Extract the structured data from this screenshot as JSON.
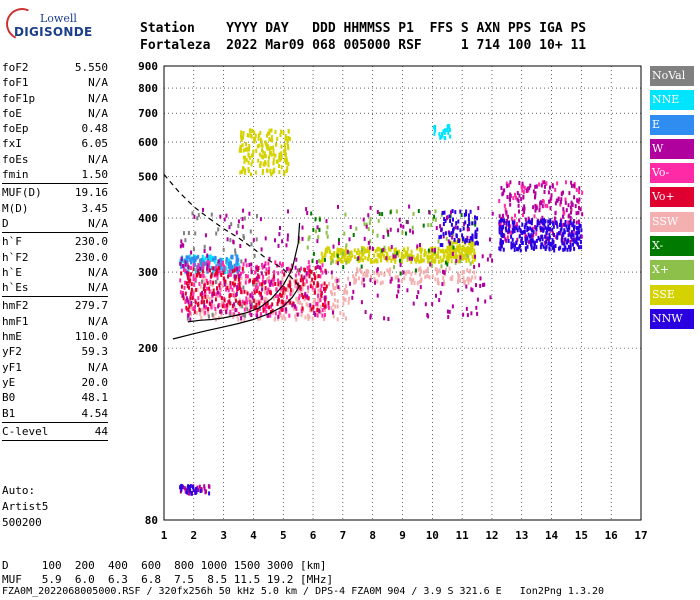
{
  "logo": {
    "line1": "Lowell",
    "line2": "DIGISONDE"
  },
  "header": {
    "labels": "Station    YYYY DAY   DDD HHMMSS P1  FFS S AXN PPS IGA PS",
    "values": "Fortaleza  2022 Mar09 068 005000 RSF     1 714 100 10+ 11"
  },
  "params": [
    {
      "k": "foF2",
      "v": "5.550"
    },
    {
      "k": "foF1",
      "v": "N/A"
    },
    {
      "k": "foF1p",
      "v": "N/A"
    },
    {
      "k": "foE",
      "v": "N/A"
    },
    {
      "k": "foEp",
      "v": "0.48"
    },
    {
      "k": "fxI",
      "v": "6.05"
    },
    {
      "k": "foEs",
      "v": "N/A"
    },
    {
      "k": "fmin",
      "v": "1.50"
    },
    {
      "sep": true
    },
    {
      "k": "MUF(D)",
      "v": "19.16"
    },
    {
      "k": "M(D)",
      "v": "3.45"
    },
    {
      "k": "D",
      "v": "N/A"
    },
    {
      "sep": true
    },
    {
      "k": "h`F",
      "v": "230.0"
    },
    {
      "k": "h`F2",
      "v": "230.0"
    },
    {
      "k": "h`E",
      "v": "N/A"
    },
    {
      "k": "h`Es",
      "v": "N/A"
    },
    {
      "sep": true
    },
    {
      "k": "hmF2",
      "v": "279.7"
    },
    {
      "k": "hmF1",
      "v": "N/A"
    },
    {
      "k": "hmE",
      "v": "110.0"
    },
    {
      "k": "yF2",
      "v": "59.3"
    },
    {
      "k": "yF1",
      "v": "N/A"
    },
    {
      "k": "yE",
      "v": "20.0"
    },
    {
      "k": "B0",
      "v": "48.1"
    },
    {
      "k": "B1",
      "v": "4.54"
    },
    {
      "sep": true
    },
    {
      "k": "C-level",
      "v": "44"
    },
    {
      "sep": true
    }
  ],
  "auto": {
    "line1": "Auto:",
    "line2": "Artist5",
    "line3": "500200"
  },
  "footer": {
    "line1": "D     100  200  400  600  800 1000 1500 3000 [km]",
    "line2": "MUF   5.9  6.0  6.3  6.8  7.5  8.5 11.5 19.2 [MHz]",
    "line3": "FZA0M_2022068005000.RSF / 320fx256h 50 kHz 5.0 km / DPS-4 FZA0M 904 / 3.9 S 321.6 E   Ion2Png 1.3.20"
  },
  "legend": [
    {
      "label": "NoVal",
      "color": "#808080"
    },
    {
      "label": "NNE",
      "color": "#00e5ff"
    },
    {
      "label": "E",
      "color": "#2f8cf0"
    },
    {
      "label": "W",
      "color": "#b0009e"
    },
    {
      "label": "Vo-",
      "color": "#ff2aa6"
    },
    {
      "label": "Vo+",
      "color": "#e00030"
    },
    {
      "label": "SSW",
      "color": "#f4b0b0"
    },
    {
      "label": "X-",
      "color": "#007a00"
    },
    {
      "label": "X+",
      "color": "#8cc04a"
    },
    {
      "label": "SSE",
      "color": "#d4d200"
    },
    {
      "label": "NNW",
      "color": "#2a00e0"
    }
  ],
  "chart_data": {
    "type": "scatter",
    "title": "",
    "xlabel": "",
    "ylabel": "",
    "xlim": [
      1,
      17
    ],
    "ylim": [
      80,
      900
    ],
    "yscale": "log",
    "x_ticks": [
      1,
      2,
      3,
      4,
      5,
      6,
      7,
      8,
      9,
      10,
      11,
      12,
      13,
      14,
      15,
      16,
      17
    ],
    "y_ticks": [
      80,
      200,
      300,
      400,
      500,
      600,
      700,
      800,
      900
    ],
    "grid": true,
    "legend_position": "right",
    "clusters": [
      {
        "name": "NoVal",
        "x": [
          1.6,
          4.2
        ],
        "y": [
          235,
          420
        ],
        "n": 60
      },
      {
        "name": "NNE",
        "x": [
          1.5,
          3.5
        ],
        "y": [
          300,
          330
        ],
        "n": 90
      },
      {
        "name": "NNE",
        "x": [
          10.0,
          10.6
        ],
        "y": [
          615,
          665
        ],
        "n": 25
      },
      {
        "name": "E",
        "x": [
          1.5,
          3.5
        ],
        "y": [
          305,
          330
        ],
        "n": 80
      },
      {
        "name": "W",
        "x": [
          1.5,
          12
        ],
        "y": [
          235,
          430
        ],
        "n": 260
      },
      {
        "name": "W",
        "x": [
          12.2,
          15
        ],
        "y": [
          350,
          490
        ],
        "n": 170
      },
      {
        "name": "Vo-",
        "x": [
          1.5,
          6.5
        ],
        "y": [
          240,
          320
        ],
        "n": 280
      },
      {
        "name": "Vo-",
        "x": [
          12.2,
          15
        ],
        "y": [
          360,
          490
        ],
        "n": 90
      },
      {
        "name": "Vo+",
        "x": [
          1.5,
          6.5
        ],
        "y": [
          245,
          310
        ],
        "n": 220
      },
      {
        "name": "SSW",
        "x": [
          1.8,
          7.2
        ],
        "y": [
          235,
          295
        ],
        "n": 320
      },
      {
        "name": "SSW",
        "x": [
          7.3,
          11.5
        ],
        "y": [
          285,
          310
        ],
        "n": 120
      },
      {
        "name": "X-",
        "x": [
          5.5,
          11.5
        ],
        "y": [
          300,
          420
        ],
        "n": 40
      },
      {
        "name": "X+",
        "x": [
          5.5,
          11.5
        ],
        "y": [
          310,
          420
        ],
        "n": 60
      },
      {
        "name": "SSE",
        "x": [
          3.5,
          5.2
        ],
        "y": [
          510,
          650
        ],
        "n": 180
      },
      {
        "name": "SSE",
        "x": [
          6.2,
          11.4
        ],
        "y": [
          320,
          345
        ],
        "n": 300
      },
      {
        "name": "SSE",
        "x": [
          10.5,
          11.4
        ],
        "y": [
          325,
          360
        ],
        "n": 80
      },
      {
        "name": "NNW",
        "x": [
          12.2,
          15
        ],
        "y": [
          340,
          400
        ],
        "n": 260
      },
      {
        "name": "NNW",
        "x": [
          10.2,
          11.5
        ],
        "y": [
          350,
          420
        ],
        "n": 70
      },
      {
        "name": "W",
        "x": [
          1.5,
          2.5
        ],
        "y": [
          93,
          97
        ],
        "n": 30
      },
      {
        "name": "NNW",
        "x": [
          1.5,
          2.5
        ],
        "y": [
          93,
          97
        ],
        "n": 20
      }
    ],
    "curves": [
      {
        "name": "profile",
        "style": "solid",
        "x": [
          1.3,
          2.0,
          2.5,
          3.0,
          3.5,
          4.0,
          4.5,
          5.0,
          5.3,
          5.5,
          5.55
        ],
        "y": [
          210,
          216,
          220,
          224,
          228,
          233,
          240,
          250,
          262,
          275,
          280
        ]
      },
      {
        "name": "trace",
        "style": "solid",
        "x": [
          1.8,
          2.2,
          2.6,
          3.0,
          3.4,
          3.8,
          4.2,
          4.6,
          5.0,
          5.3,
          5.5,
          5.55
        ],
        "y": [
          230,
          232,
          233,
          235,
          238,
          242,
          248,
          260,
          280,
          305,
          350,
          390
        ]
      },
      {
        "name": "MUF",
        "style": "dashed",
        "x": [
          1.0,
          1.5,
          2.0,
          2.5,
          3.0,
          3.5,
          4.0,
          4.5,
          5.0,
          5.3,
          5.5
        ],
        "y": [
          505,
          460,
          425,
          400,
          378,
          360,
          340,
          320,
          305,
          290,
          280
        ]
      }
    ]
  }
}
